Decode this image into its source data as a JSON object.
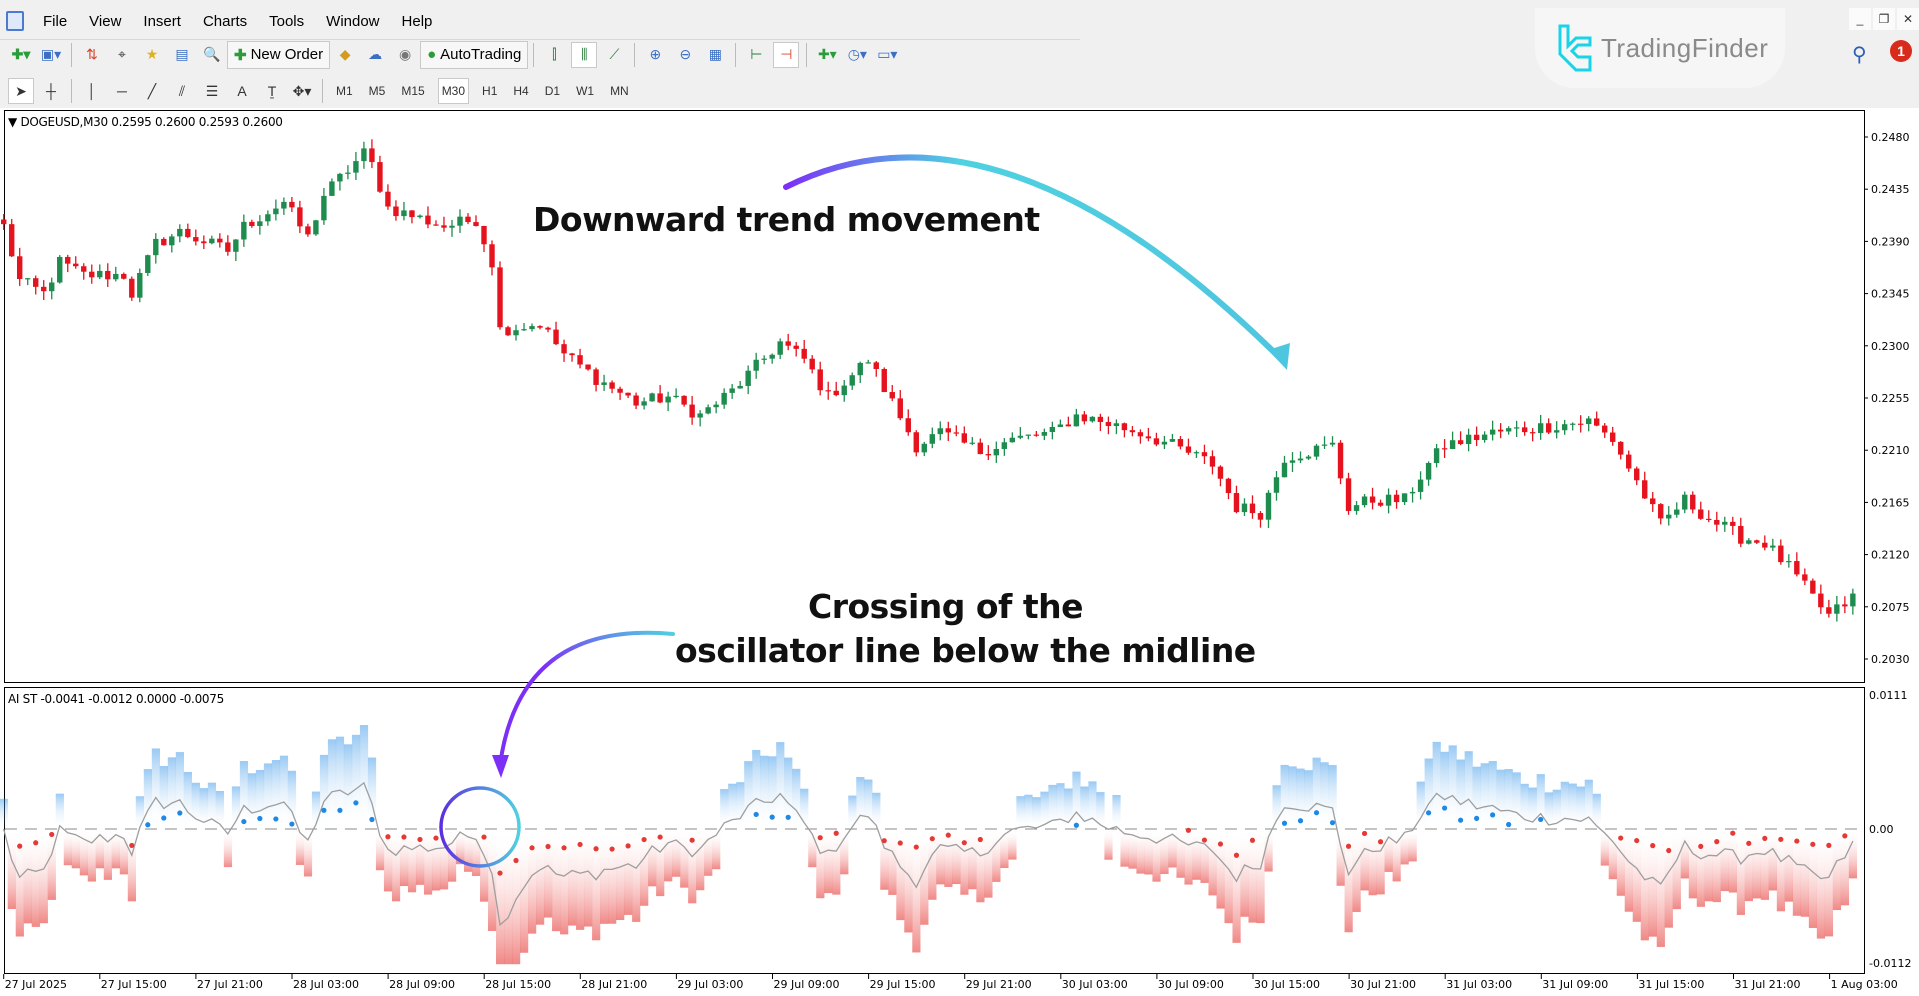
{
  "menu": {
    "items": [
      "File",
      "View",
      "Insert",
      "Charts",
      "Tools",
      "Window",
      "Help"
    ]
  },
  "toolbar": {
    "new_order_label": "New Order",
    "autotrading_label": "AutoTrading"
  },
  "drawing_tools": {
    "text_tool": "A"
  },
  "timeframes": {
    "items": [
      "M1",
      "M5",
      "M15",
      "M30",
      "H1",
      "H4",
      "D1",
      "W1",
      "MN"
    ],
    "active": "M30"
  },
  "branding": {
    "logo_text": "TradingFinder",
    "accent": "#19d3e6"
  },
  "notifications": {
    "count": "1"
  },
  "window_controls": {
    "minimize": "_",
    "restore": "❐",
    "close": "✕"
  },
  "chart": {
    "symbol_legend": "DOGEUSD,M30  0.2595 0.2600 0.2593 0.2600",
    "price_axis": [
      "0.2480",
      "0.2435",
      "0.2390",
      "0.2345",
      "0.2300",
      "0.2255",
      "0.2210",
      "0.2165",
      "0.2120",
      "0.2075",
      "0.2030"
    ],
    "time_axis": [
      "27 Jul 2025",
      "27 Jul 15:00",
      "27 Jul 21:00",
      "28 Jul 03:00",
      "28 Jul 09:00",
      "28 Jul 15:00",
      "28 Jul 21:00",
      "29 Jul 03:00",
      "29 Jul 09:00",
      "29 Jul 15:00",
      "29 Jul 21:00",
      "30 Jul 03:00",
      "30 Jul 09:00",
      "30 Jul 15:00",
      "30 Jul 21:00",
      "31 Jul 03:00",
      "31 Jul 09:00",
      "31 Jul 15:00",
      "31 Jul 21:00",
      "1 Aug 03:00"
    ],
    "bull_color": "#1e8c4e",
    "bear_color": "#e5131d",
    "price_path": [
      [
        "27 Jul 09:00",
        0.2403
      ],
      [
        "27 Jul 10:00",
        0.2356
      ],
      [
        "27 Jul 11:30",
        0.2345
      ],
      [
        "27 Jul 12:30",
        0.2372
      ],
      [
        "27 Jul 14:00",
        0.2361
      ],
      [
        "27 Jul 16:30",
        0.2361
      ],
      [
        "27 Jul 17:00",
        0.2345
      ],
      [
        "27 Jul 18:30",
        0.2388
      ],
      [
        "27 Jul 20:00",
        0.2398
      ],
      [
        "27 Jul 23:00",
        0.2382
      ],
      [
        "28 Jul 00:00",
        0.2403
      ],
      [
        "28 Jul 02:30",
        0.2424
      ],
      [
        "28 Jul 04:00",
        0.2393
      ],
      [
        "28 Jul 05:00",
        0.243
      ],
      [
        "28 Jul 07:30",
        0.2466
      ],
      [
        "28 Jul 08:00",
        0.2456
      ],
      [
        "28 Jul 09:00",
        0.2419
      ],
      [
        "28 Jul 12:30",
        0.2403
      ],
      [
        "28 Jul 14:30",
        0.2409
      ],
      [
        "28 Jul 15:30",
        0.2372
      ],
      [
        "28 Jul 16:00",
        0.2314
      ],
      [
        "28 Jul 18:30",
        0.2319
      ],
      [
        "28 Jul 20:00",
        0.2293
      ],
      [
        "28 Jul 22:00",
        0.2272
      ],
      [
        "29 Jul 00:30",
        0.2251
      ],
      [
        "29 Jul 02:30",
        0.2256
      ],
      [
        "29 Jul 04:30",
        0.224
      ],
      [
        "29 Jul 06:30",
        0.2261
      ],
      [
        "29 Jul 09:30",
        0.2303
      ],
      [
        "29 Jul 11:00",
        0.2288
      ],
      [
        "29 Jul 12:30",
        0.2256
      ],
      [
        "29 Jul 15:00",
        0.2288
      ],
      [
        "29 Jul 16:30",
        0.2251
      ],
      [
        "29 Jul 18:00",
        0.2214
      ],
      [
        "29 Jul 19:30",
        0.2225
      ],
      [
        "29 Jul 22:00",
        0.2209
      ],
      [
        "30 Jul 00:00",
        0.2219
      ],
      [
        "30 Jul 02:30",
        0.2225
      ],
      [
        "30 Jul 04:00",
        0.224
      ],
      [
        "30 Jul 05:30",
        0.2235
      ],
      [
        "30 Jul 08:00",
        0.2225
      ],
      [
        "30 Jul 10:00",
        0.2214
      ],
      [
        "30 Jul 12:30",
        0.2198
      ],
      [
        "30 Jul 14:00",
        0.2161
      ],
      [
        "30 Jul 15:30",
        0.2156
      ],
      [
        "30 Jul 17:00",
        0.2204
      ],
      [
        "30 Jul 18:30",
        0.2209
      ],
      [
        "30 Jul 20:00",
        0.2214
      ],
      [
        "30 Jul 21:00",
        0.2161
      ],
      [
        "30 Jul 22:30",
        0.2167
      ],
      [
        "31 Jul 00:30",
        0.2167
      ],
      [
        "31 Jul 02:00",
        0.2198
      ],
      [
        "31 Jul 03:00",
        0.2214
      ],
      [
        "31 Jul 06:00",
        0.2225
      ],
      [
        "31 Jul 09:00",
        0.223
      ],
      [
        "31 Jul 12:00",
        0.2235
      ],
      [
        "31 Jul 13:30",
        0.2219
      ],
      [
        "31 Jul 15:00",
        0.2183
      ],
      [
        "31 Jul 16:30",
        0.2146
      ],
      [
        "31 Jul 18:00",
        0.2167
      ],
      [
        "31 Jul 19:30",
        0.2151
      ],
      [
        "31 Jul 21:30",
        0.2135
      ],
      [
        "31 Jul 23:00",
        0.213
      ],
      [
        "1 Aug 00:30",
        0.2109
      ],
      [
        "1 Aug 02:00",
        0.2083
      ],
      [
        "1 Aug 03:00",
        0.2067
      ],
      [
        "1 Aug 04:30",
        0.2083
      ]
    ]
  },
  "indicator": {
    "legend": "AI ST -0.0041 -0.0012 0.0000 -0.0075",
    "axis": [
      "0.0111",
      "0.00",
      "-0.0112"
    ],
    "positive_color": "#1e88e5",
    "negative_color": "#e53935",
    "line_color": "#9e9e9e"
  },
  "annotations": {
    "trend": "Downward trend movement",
    "crossing_line1": "Crossing of the",
    "crossing_line2": "oscillator line below the midline",
    "arrow_start_color": "#7b2ff7",
    "arrow_end_color": "#4fd1e0"
  }
}
